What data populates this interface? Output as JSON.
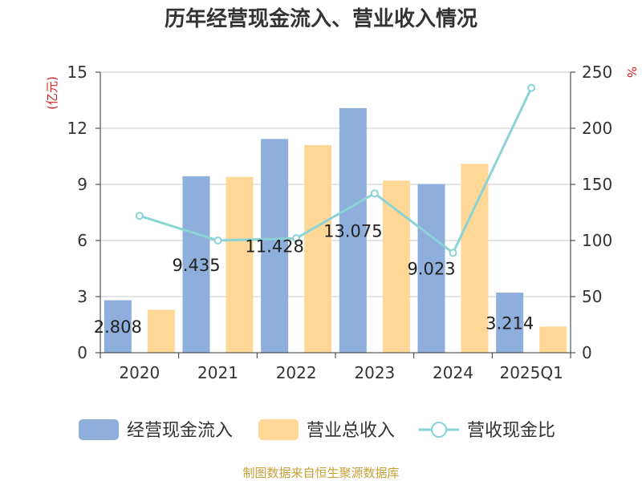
{
  "chart_data": {
    "type": "bar",
    "title": "历年经营现金流入、营业收入情况",
    "categories": [
      "2020",
      "2021",
      "2022",
      "2023",
      "2024",
      "2025Q1"
    ],
    "series": [
      {
        "name": "经营现金流入",
        "kind": "bar",
        "axis": "left",
        "color": "#8eaedb",
        "values": [
          2.808,
          9.435,
          11.428,
          13.075,
          9.023,
          3.214
        ]
      },
      {
        "name": "营业总收入",
        "kind": "bar",
        "axis": "left",
        "color": "#ffd898",
        "values": [
          2.3,
          9.4,
          11.1,
          9.2,
          10.1,
          1.4
        ]
      },
      {
        "name": "营收现金比",
        "kind": "line",
        "axis": "right",
        "color": "#8ad3d6",
        "values": [
          122,
          100,
          102,
          142,
          89,
          236
        ]
      }
    ],
    "data_labels": [
      "2.808",
      "9.435",
      "11.428",
      "13.075",
      "9.023",
      "3.214"
    ],
    "y_left": {
      "label": "(亿元)",
      "ticks": [
        "0",
        "3",
        "6",
        "9",
        "12",
        "15"
      ],
      "lim": [
        0,
        15
      ]
    },
    "y_right": {
      "label": "%",
      "ticks": [
        "0",
        "50",
        "100",
        "150",
        "200",
        "250"
      ],
      "lim": [
        0,
        250
      ]
    },
    "grid": true,
    "legend": "bottom",
    "unit_color": "#e02020"
  },
  "source": {
    "text": "制图数据来自恒生聚源数据库",
    "color": "#c8a038"
  }
}
